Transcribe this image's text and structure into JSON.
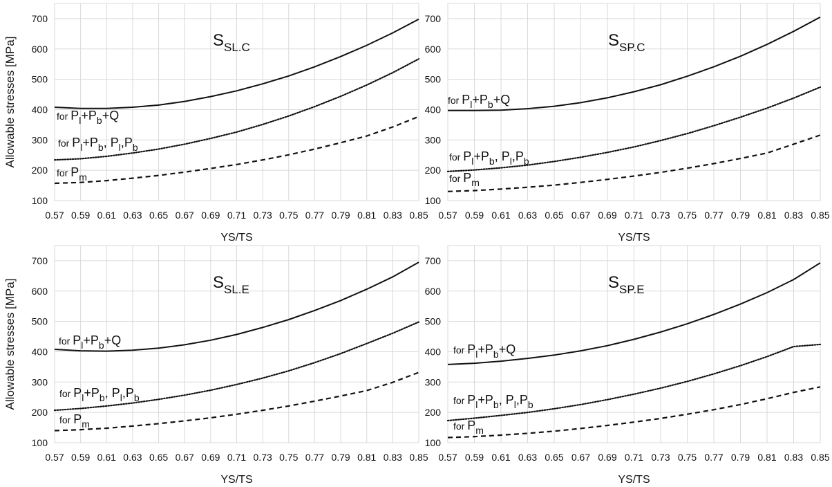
{
  "figure": {
    "ylabel": "Allowable stresses [MPa]",
    "xlabel": "YS/TS"
  },
  "chart_data": [
    {
      "type": "line",
      "title": {
        "main": "S",
        "sub": "SL.C"
      },
      "xlabel": "YS/TS",
      "ylabel": "Allowable stresses [MPa]",
      "xlim": [
        0.57,
        0.85
      ],
      "ylim": [
        100,
        750
      ],
      "x_ticks": [
        "0.57",
        "0.59",
        "0.61",
        "0.63",
        "0.65",
        "0.67",
        "0.69",
        "0.71",
        "0.73",
        "0.75",
        "0.77",
        "0.79",
        "0.81",
        "0.83",
        "0.85"
      ],
      "y_ticks": [
        100,
        200,
        300,
        400,
        500,
        600,
        700
      ],
      "grid": true,
      "x": [
        0.57,
        0.59,
        0.61,
        0.63,
        0.65,
        0.67,
        0.69,
        0.71,
        0.73,
        0.75,
        0.77,
        0.79,
        0.81,
        0.83,
        0.85
      ],
      "series": [
        {
          "label": [
            [
              "t",
              "for "
            ],
            [
              "t",
              "P"
            ],
            [
              "sub",
              "l"
            ],
            [
              "t",
              "+P"
            ],
            [
              "sub",
              "b"
            ],
            [
              "t",
              "+Q"
            ]
          ],
          "style": "solid",
          "values": [
            408,
            404,
            404,
            408,
            415,
            427,
            443,
            462,
            485,
            511,
            541,
            575,
            612,
            653,
            698
          ]
        },
        {
          "label": [
            [
              "t",
              "for "
            ],
            [
              "t",
              "P"
            ],
            [
              "sub",
              "l"
            ],
            [
              "t",
              "+P"
            ],
            [
              "sub",
              "b"
            ],
            [
              "t",
              ", P"
            ],
            [
              "sub",
              "l"
            ],
            [
              "t",
              ",P"
            ],
            [
              "sub",
              "b"
            ]
          ],
          "style": "dotted",
          "values": [
            234,
            238,
            246,
            257,
            270,
            286,
            305,
            326,
            351,
            379,
            410,
            444,
            481,
            522,
            567
          ]
        },
        {
          "label": [
            [
              "t",
              "for "
            ],
            [
              "t",
              "P"
            ],
            [
              "sub",
              "m"
            ]
          ],
          "style": "dashed",
          "values": [
            157,
            160,
            166,
            174,
            183,
            194,
            206,
            219,
            234,
            251,
            270,
            291,
            313,
            343,
            377
          ]
        }
      ]
    },
    {
      "type": "line",
      "title": {
        "main": "S",
        "sub": "SP.C"
      },
      "xlabel": "YS/TS",
      "ylabel": "",
      "xlim": [
        0.57,
        0.85
      ],
      "ylim": [
        100,
        750
      ],
      "x_ticks": [
        "0.57",
        "0.59",
        "0.61",
        "0.63",
        "0.65",
        "0.67",
        "0.69",
        "0.71",
        "0.73",
        "0.75",
        "0.77",
        "0.79",
        "0.81",
        "0.83",
        "0.85"
      ],
      "y_ticks": [
        100,
        200,
        300,
        400,
        500,
        600,
        700
      ],
      "grid": true,
      "x": [
        0.57,
        0.59,
        0.61,
        0.63,
        0.65,
        0.67,
        0.69,
        0.71,
        0.73,
        0.75,
        0.77,
        0.79,
        0.81,
        0.83,
        0.85
      ],
      "series": [
        {
          "label": [
            [
              "t",
              "for "
            ],
            [
              "t",
              "P"
            ],
            [
              "sub",
              "l"
            ],
            [
              "t",
              "+P"
            ],
            [
              "sub",
              "b"
            ],
            [
              "t",
              "+Q"
            ]
          ],
          "style": "solid",
          "values": [
            397,
            397,
            398,
            403,
            411,
            423,
            439,
            459,
            482,
            510,
            541,
            576,
            615,
            658,
            705
          ]
        },
        {
          "label": [
            [
              "t",
              "for "
            ],
            [
              "t",
              "P"
            ],
            [
              "sub",
              "l"
            ],
            [
              "t",
              "+P"
            ],
            [
              "sub",
              "b"
            ],
            [
              "t",
              ", P"
            ],
            [
              "sub",
              "l"
            ],
            [
              "t",
              ",P"
            ],
            [
              "sub",
              "b"
            ]
          ],
          "style": "dotted",
          "values": [
            196,
            201,
            208,
            217,
            229,
            243,
            259,
            277,
            298,
            321,
            347,
            375,
            405,
            438,
            474
          ]
        },
        {
          "label": [
            [
              "t",
              "for "
            ],
            [
              "t",
              "P"
            ],
            [
              "sub",
              "m"
            ]
          ],
          "style": "dashed",
          "values": [
            130,
            133,
            138,
            144,
            151,
            160,
            170,
            181,
            193,
            207,
            222,
            239,
            257,
            286,
            316
          ]
        }
      ]
    },
    {
      "type": "line",
      "title": {
        "main": "S",
        "sub": "SL.E"
      },
      "xlabel": "YS/TS",
      "ylabel": "Allowable stresses [MPa]",
      "xlim": [
        0.57,
        0.85
      ],
      "ylim": [
        100,
        750
      ],
      "x_ticks": [
        "0.57",
        "0.59",
        "0.61",
        "0.63",
        "0.65",
        "0.67",
        "0.69",
        "0.71",
        "0.73",
        "0.75",
        "0.77",
        "0.79",
        "0.81",
        "0.83",
        "0.85"
      ],
      "y_ticks": [
        100,
        200,
        300,
        400,
        500,
        600,
        700
      ],
      "grid": true,
      "x": [
        0.57,
        0.59,
        0.61,
        0.63,
        0.65,
        0.67,
        0.69,
        0.71,
        0.73,
        0.75,
        0.77,
        0.79,
        0.81,
        0.83,
        0.85
      ],
      "series": [
        {
          "label": [
            [
              "t",
              "for "
            ],
            [
              "t",
              "P"
            ],
            [
              "sub",
              "l"
            ],
            [
              "t",
              "+P"
            ],
            [
              "sub",
              "b"
            ],
            [
              "t",
              "+Q"
            ]
          ],
          "style": "solid",
          "values": [
            408,
            403,
            402,
            405,
            412,
            423,
            438,
            457,
            480,
            506,
            536,
            569,
            606,
            647,
            695
          ]
        },
        {
          "label": [
            [
              "t",
              "for "
            ],
            [
              "t",
              "P"
            ],
            [
              "sub",
              "l"
            ],
            [
              "t",
              "+P"
            ],
            [
              "sub",
              "b"
            ],
            [
              "t",
              ", P"
            ],
            [
              "sub",
              "l"
            ],
            [
              "t",
              ",P"
            ],
            [
              "sub",
              "b"
            ]
          ],
          "style": "dotted",
          "values": [
            207,
            213,
            221,
            231,
            243,
            257,
            273,
            292,
            313,
            337,
            364,
            394,
            427,
            461,
            498
          ]
        },
        {
          "label": [
            [
              "t",
              "for "
            ],
            [
              "t",
              "P"
            ],
            [
              "sub",
              "m"
            ]
          ],
          "style": "dashed",
          "values": [
            140,
            143,
            148,
            155,
            163,
            172,
            182,
            194,
            207,
            221,
            237,
            254,
            272,
            299,
            332
          ]
        }
      ]
    },
    {
      "type": "line",
      "title": {
        "main": "S",
        "sub": "SP.E"
      },
      "xlabel": "YS/TS",
      "ylabel": "",
      "xlim": [
        0.57,
        0.85
      ],
      "ylim": [
        100,
        750
      ],
      "x_ticks": [
        "0.57",
        "0.59",
        "0.61",
        "0.63",
        "0.65",
        "0.67",
        "0.69",
        "0.71",
        "0.73",
        "0.75",
        "0.77",
        "0.79",
        "0.81",
        "0.83",
        "0.85"
      ],
      "y_ticks": [
        100,
        200,
        300,
        400,
        500,
        600,
        700
      ],
      "grid": true,
      "x": [
        0.57,
        0.59,
        0.61,
        0.63,
        0.65,
        0.67,
        0.69,
        0.71,
        0.73,
        0.75,
        0.77,
        0.79,
        0.81,
        0.83,
        0.85
      ],
      "series": [
        {
          "label": [
            [
              "t",
              "for "
            ],
            [
              "t",
              "P"
            ],
            [
              "sub",
              "l"
            ],
            [
              "t",
              "+P"
            ],
            [
              "sub",
              "b"
            ],
            [
              "t",
              "+Q"
            ]
          ],
          "style": "solid",
          "values": [
            358,
            362,
            369,
            378,
            389,
            403,
            420,
            441,
            465,
            492,
            523,
            557,
            595,
            638,
            693
          ]
        },
        {
          "label": [
            [
              "t",
              "for "
            ],
            [
              "t",
              "P"
            ],
            [
              "sub",
              "l"
            ],
            [
              "t",
              "+P"
            ],
            [
              "sub",
              "b"
            ],
            [
              "t",
              ", P"
            ],
            [
              "sub",
              "l"
            ],
            [
              "t",
              ",P"
            ],
            [
              "sub",
              "b"
            ]
          ],
          "style": "dotted",
          "values": [
            173,
            181,
            190,
            200,
            212,
            226,
            242,
            260,
            280,
            302,
            327,
            354,
            384,
            417,
            424
          ]
        },
        {
          "label": [
            [
              "t",
              "for "
            ],
            [
              "t",
              "P"
            ],
            [
              "sub",
              "m"
            ]
          ],
          "style": "dashed",
          "values": [
            117,
            120,
            125,
            131,
            138,
            147,
            157,
            168,
            180,
            194,
            209,
            226,
            245,
            266,
            284
          ]
        }
      ]
    }
  ]
}
